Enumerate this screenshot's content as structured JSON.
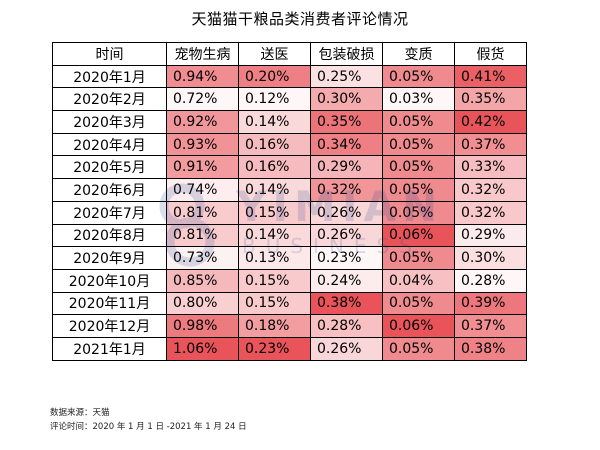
{
  "chart_data": {
    "type": "table",
    "title": "天猫猫干粮品类消费者评论情况",
    "columns": [
      "时间",
      "宠物生病",
      "送医",
      "包装破损",
      "变质",
      "假货"
    ],
    "rows": [
      {
        "time": "2020年1月",
        "values": [
          "0.94%",
          "0.20%",
          "0.25%",
          "0.05%",
          "0.41%"
        ]
      },
      {
        "time": "2020年2月",
        "values": [
          "0.72%",
          "0.12%",
          "0.30%",
          "0.03%",
          "0.35%"
        ]
      },
      {
        "time": "2020年3月",
        "values": [
          "0.92%",
          "0.14%",
          "0.35%",
          "0.05%",
          "0.42%"
        ]
      },
      {
        "time": "2020年4月",
        "values": [
          "0.93%",
          "0.16%",
          "0.34%",
          "0.05%",
          "0.37%"
        ]
      },
      {
        "time": "2020年5月",
        "values": [
          "0.91%",
          "0.16%",
          "0.29%",
          "0.05%",
          "0.33%"
        ]
      },
      {
        "time": "2020年6月",
        "values": [
          "0.74%",
          "0.14%",
          "0.32%",
          "0.05%",
          "0.32%"
        ]
      },
      {
        "time": "2020年7月",
        "values": [
          "0.81%",
          "0.15%",
          "0.26%",
          "0.05%",
          "0.32%"
        ]
      },
      {
        "time": "2020年8月",
        "values": [
          "0.81%",
          "0.14%",
          "0.26%",
          "0.06%",
          "0.29%"
        ]
      },
      {
        "time": "2020年9月",
        "values": [
          "0.73%",
          "0.13%",
          "0.23%",
          "0.05%",
          "0.30%"
        ]
      },
      {
        "time": "2020年10月",
        "values": [
          "0.85%",
          "0.15%",
          "0.24%",
          "0.04%",
          "0.28%"
        ]
      },
      {
        "time": "2020年11月",
        "values": [
          "0.80%",
          "0.15%",
          "0.38%",
          "0.05%",
          "0.39%"
        ]
      },
      {
        "time": "2020年12月",
        "values": [
          "0.98%",
          "0.18%",
          "0.28%",
          "0.06%",
          "0.37%"
        ]
      },
      {
        "time": "2021年1月",
        "values": [
          "1.06%",
          "0.23%",
          "0.26%",
          "0.05%",
          "0.38%"
        ]
      }
    ],
    "color_scale": {
      "low": "#ffffff",
      "high": "#e8545a"
    }
  },
  "watermark": {
    "text_main": "YIMIAN",
    "text_sub": "BUSINESS",
    "logo_icon": "infinity-logo-icon"
  },
  "notes": {
    "source": "数据来源：天猫",
    "period": "评论时间：2020 年 1 月 1 日 -2021 年 1 月 24 日"
  }
}
